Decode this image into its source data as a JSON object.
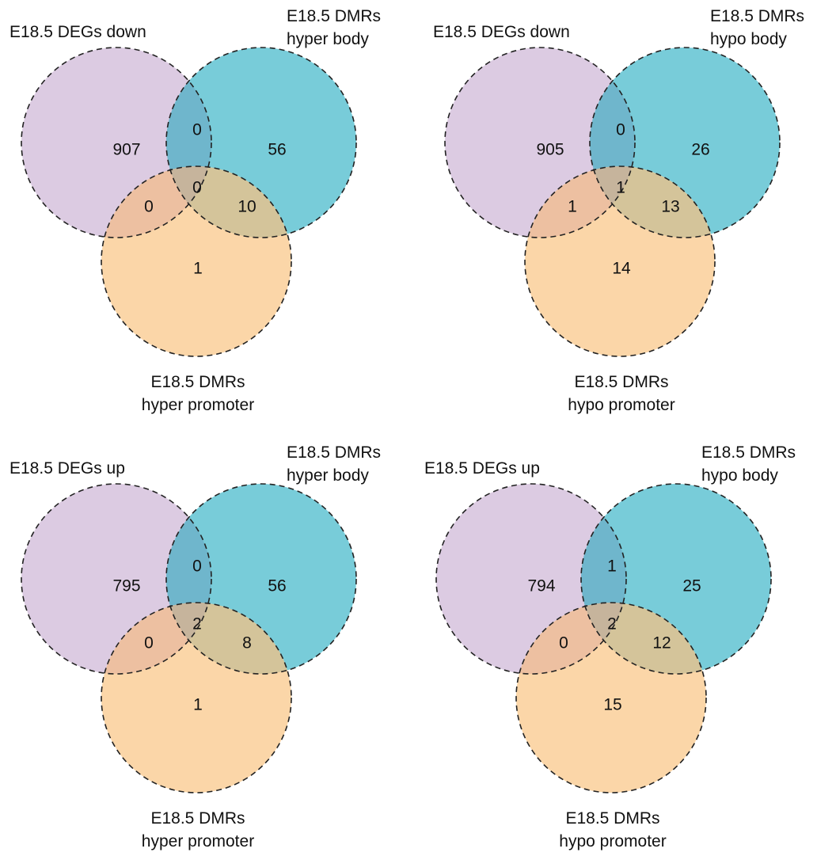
{
  "colors": {
    "set_a": "#dccbe2",
    "set_b": "#78ccd9",
    "set_c": "#fbd6a8",
    "ab": "#6fb6cc",
    "ac": "#edc0a1",
    "bc": "#d4c49a",
    "abc": "#c6b49c",
    "outline": "#222222",
    "text": "#111111"
  },
  "diagrams": [
    {
      "set_labels": {
        "a": [
          "E18.5 DEGs down"
        ],
        "b": [
          "E18.5 DMRs",
          "hyper body"
        ],
        "c": [
          "E18.5 DMRs",
          "hyper promoter"
        ]
      },
      "counts": {
        "a_only": "907",
        "b_only": "56",
        "c_only": "1",
        "ab": "0",
        "ac": "0",
        "bc": "10",
        "abc": "0"
      }
    },
    {
      "set_labels": {
        "a": [
          "E18.5 DEGs down"
        ],
        "b": [
          "E18.5 DMRs",
          "hypo body"
        ],
        "c": [
          "E18.5 DMRs",
          "hypo promoter"
        ]
      },
      "counts": {
        "a_only": "905",
        "b_only": "26",
        "c_only": "14",
        "ab": "0",
        "ac": "1",
        "bc": "13",
        "abc": "1"
      }
    },
    {
      "set_labels": {
        "a": [
          "E18.5 DEGs up"
        ],
        "b": [
          "E18.5 DMRs",
          "hyper body"
        ],
        "c": [
          "E18.5 DMRs",
          "hyper promoter"
        ]
      },
      "counts": {
        "a_only": "795",
        "b_only": "56",
        "c_only": "1",
        "ab": "0",
        "ac": "0",
        "bc": "8",
        "abc": "2"
      }
    },
    {
      "set_labels": {
        "a": [
          "E18.5 DEGs up"
        ],
        "b": [
          "E18.5 DMRs",
          "hypo body"
        ],
        "c": [
          "E18.5 DMRs",
          "hypo promoter"
        ]
      },
      "counts": {
        "a_only": "794",
        "b_only": "25",
        "c_only": "15",
        "ab": "1",
        "ac": "0",
        "bc": "12",
        "abc": "2"
      }
    }
  ]
}
